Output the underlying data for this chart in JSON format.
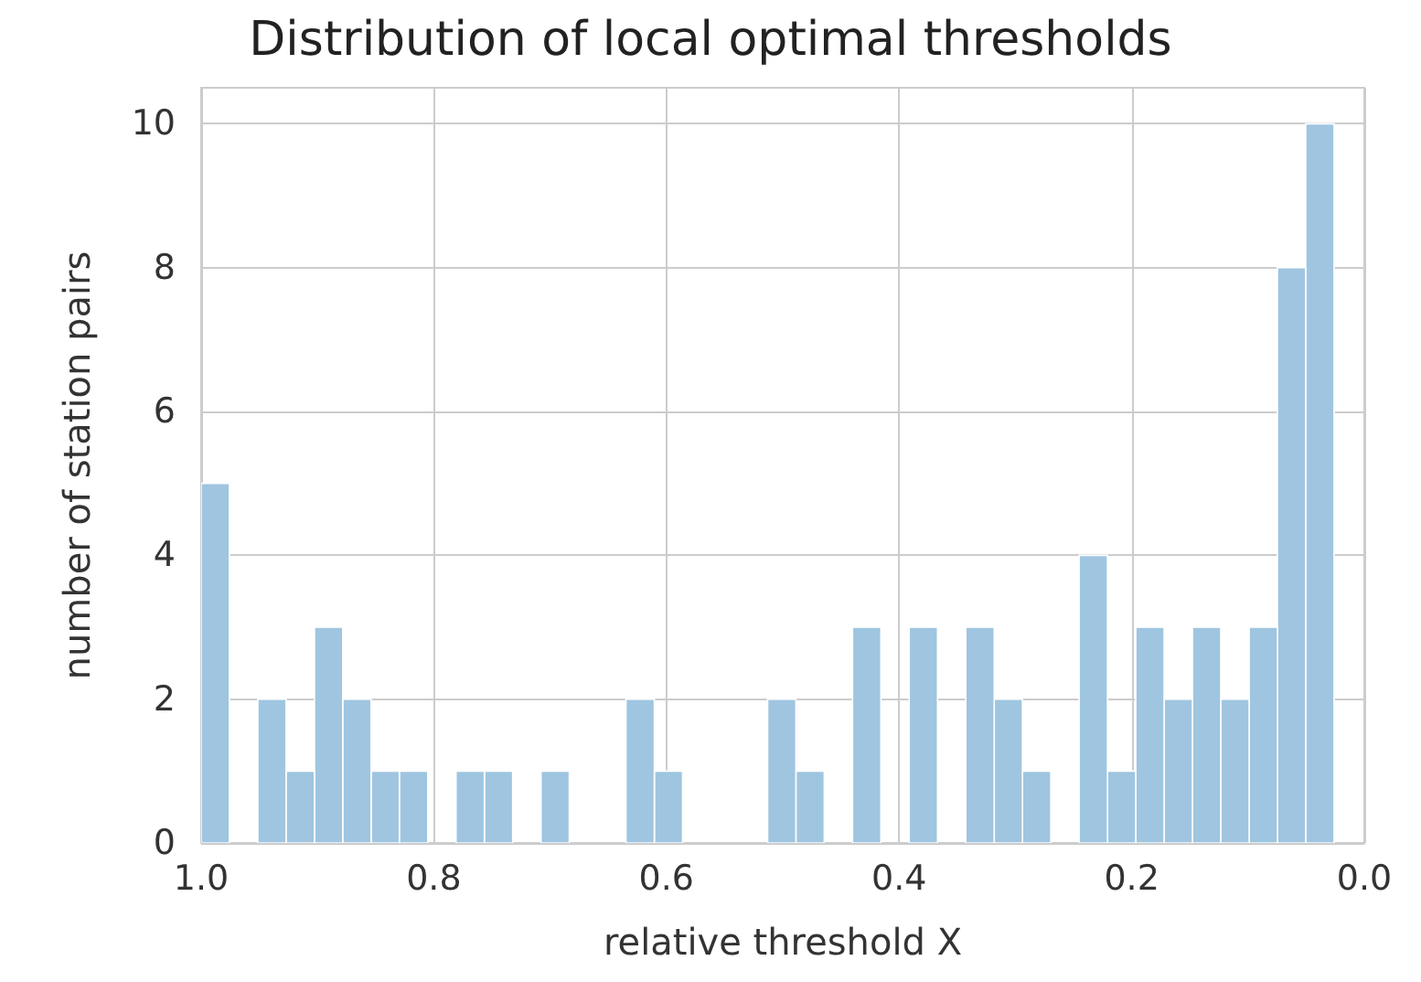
{
  "chart_data": {
    "type": "histogram",
    "title": "Distribution of local optimal thresholds",
    "xlabel": "relative threshold X",
    "ylabel": "number of station pairs",
    "bins": [
      0.026,
      0.0504,
      0.0747,
      0.099,
      0.1234,
      0.1478,
      0.1721,
      0.1965,
      0.2208,
      0.2452,
      0.2695,
      0.2939,
      0.3182,
      0.3426,
      0.3669,
      0.3913,
      0.4156,
      0.44,
      0.4643,
      0.4887,
      0.513,
      0.5374,
      0.5617,
      0.5861,
      0.6104,
      0.6348,
      0.6591,
      0.6835,
      0.7078,
      0.7322,
      0.7565,
      0.7809,
      0.8052,
      0.8296,
      0.8539,
      0.8783,
      0.9026,
      0.927,
      0.9513,
      0.9757,
      1.0
    ],
    "values": [
      10,
      8,
      3,
      2,
      3,
      2,
      3,
      1,
      4,
      0,
      1,
      2,
      3,
      0,
      3,
      0,
      3,
      0,
      1,
      2,
      0,
      0,
      0,
      1,
      2,
      0,
      0,
      1,
      0,
      1,
      1,
      0,
      1,
      1,
      2,
      3,
      1,
      2,
      0,
      5
    ],
    "color": "#9fc5e0",
    "xlim": [
      1.0,
      0.0
    ],
    "xticks": [
      {
        "value": 1.0,
        "label": "1.0"
      },
      0.8,
      0.6,
      0.4,
      0.2,
      {
        "value": 0.0,
        "label": "0.0"
      }
    ],
    "ylim": [
      0,
      10.5
    ],
    "yticks": [
      0,
      2,
      4,
      6,
      8,
      10
    ],
    "grid": true
  }
}
